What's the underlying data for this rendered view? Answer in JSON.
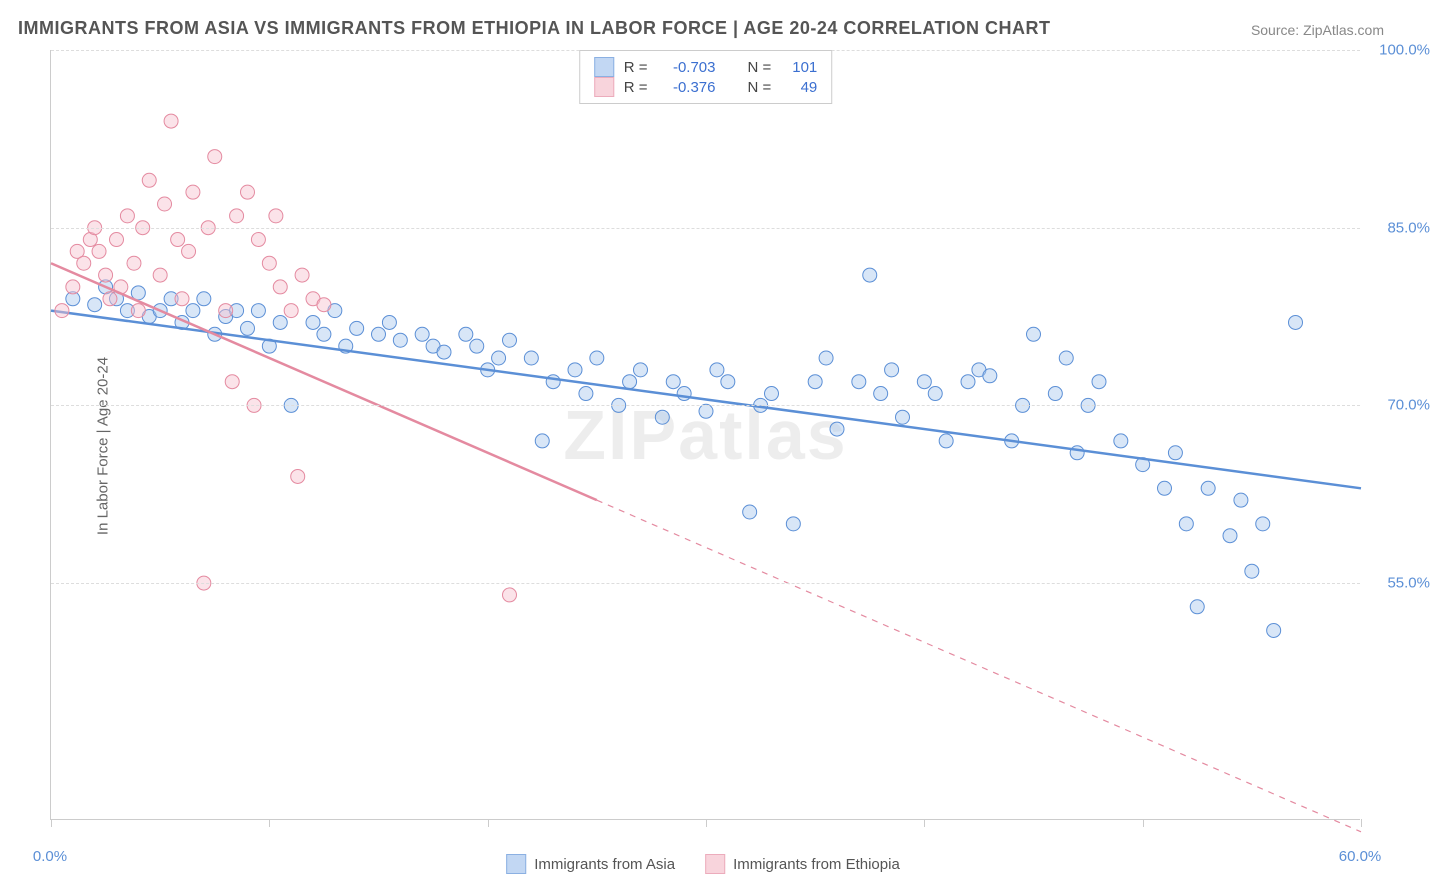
{
  "title": "IMMIGRANTS FROM ASIA VS IMMIGRANTS FROM ETHIOPIA IN LABOR FORCE | AGE 20-24 CORRELATION CHART",
  "source": "Source: ZipAtlas.com",
  "watermark": "ZIPatlas",
  "ylabel": "In Labor Force | Age 20-24",
  "chart": {
    "type": "scatter-correlation",
    "xlim": [
      0,
      60
    ],
    "ylim": [
      35,
      100
    ],
    "x_ticks": [
      0,
      10,
      20,
      30,
      40,
      50,
      60
    ],
    "x_tick_labels": [
      "0.0%",
      "",
      "",
      "",
      "",
      "",
      "60.0%"
    ],
    "y_ticks": [
      55,
      70,
      85,
      100
    ],
    "y_tick_labels": [
      "55.0%",
      "70.0%",
      "85.0%",
      "100.0%"
    ],
    "background_color": "#ffffff",
    "grid_color": "#dddddd",
    "axis_color": "#cccccc",
    "tick_label_color": "#5b8fd6",
    "marker_radius": 7,
    "marker_opacity": 0.45,
    "line_width": 2.5
  },
  "stats_legend": {
    "rows": [
      {
        "swatch_fill": "#a9c7ee",
        "swatch_border": "#5b8fd6",
        "R": "-0.703",
        "N": "101"
      },
      {
        "swatch_fill": "#f6c2ce",
        "swatch_border": "#e48aa0",
        "R": "-0.376",
        "N": "49"
      }
    ],
    "labels": {
      "R": "R =",
      "N": "N ="
    }
  },
  "bottom_legend": {
    "items": [
      {
        "label": "Immigrants from Asia",
        "fill": "#a9c7ee",
        "border": "#5b8fd6"
      },
      {
        "label": "Immigrants from Ethiopia",
        "fill": "#f6c2ce",
        "border": "#e48aa0"
      }
    ]
  },
  "series": [
    {
      "name": "Immigrants from Asia",
      "color_fill": "#a9c7ee",
      "color_stroke": "#5b8fd6",
      "trend": {
        "x1": 0,
        "y1": 78,
        "x2": 60,
        "y2": 63,
        "dash_after_x": null
      },
      "points": [
        [
          1,
          79
        ],
        [
          2,
          78.5
        ],
        [
          2.5,
          80
        ],
        [
          3,
          79
        ],
        [
          3.5,
          78
        ],
        [
          4,
          79.5
        ],
        [
          4.5,
          77.5
        ],
        [
          5,
          78
        ],
        [
          5.5,
          79
        ],
        [
          6,
          77
        ],
        [
          6.5,
          78
        ],
        [
          7,
          79
        ],
        [
          7.5,
          76
        ],
        [
          8,
          77.5
        ],
        [
          8.5,
          78
        ],
        [
          9,
          76.5
        ],
        [
          9.5,
          78
        ],
        [
          10,
          75
        ],
        [
          10.5,
          77
        ],
        [
          11,
          70
        ],
        [
          12,
          77
        ],
        [
          12.5,
          76
        ],
        [
          13,
          78
        ],
        [
          13.5,
          75
        ],
        [
          14,
          76.5
        ],
        [
          15,
          76
        ],
        [
          15.5,
          77
        ],
        [
          16,
          75.5
        ],
        [
          17,
          76
        ],
        [
          17.5,
          75
        ],
        [
          18,
          74.5
        ],
        [
          19,
          76
        ],
        [
          19.5,
          75
        ],
        [
          20,
          73
        ],
        [
          20.5,
          74
        ],
        [
          21,
          75.5
        ],
        [
          22,
          74
        ],
        [
          22.5,
          67
        ],
        [
          23,
          72
        ],
        [
          24,
          73
        ],
        [
          24.5,
          71
        ],
        [
          25,
          74
        ],
        [
          26,
          70
        ],
        [
          26.5,
          72
        ],
        [
          27,
          73
        ],
        [
          28,
          69
        ],
        [
          28.5,
          72
        ],
        [
          29,
          71
        ],
        [
          30,
          69.5
        ],
        [
          30.5,
          73
        ],
        [
          31,
          72
        ],
        [
          32,
          61
        ],
        [
          32.5,
          70
        ],
        [
          33,
          71
        ],
        [
          34,
          60
        ],
        [
          35,
          72
        ],
        [
          35.5,
          74
        ],
        [
          36,
          68
        ],
        [
          37,
          72
        ],
        [
          37.5,
          81
        ],
        [
          38,
          71
        ],
        [
          38.5,
          73
        ],
        [
          39,
          69
        ],
        [
          40,
          72
        ],
        [
          40.5,
          71
        ],
        [
          41,
          67
        ],
        [
          42,
          72
        ],
        [
          42.5,
          73
        ],
        [
          43,
          72.5
        ],
        [
          44,
          67
        ],
        [
          44.5,
          70
        ],
        [
          45,
          76
        ],
        [
          46,
          71
        ],
        [
          46.5,
          74
        ],
        [
          47,
          66
        ],
        [
          47.5,
          70
        ],
        [
          48,
          72
        ],
        [
          49,
          67
        ],
        [
          50,
          65
        ],
        [
          51,
          63
        ],
        [
          51.5,
          66
        ],
        [
          52,
          60
        ],
        [
          52.5,
          53
        ],
        [
          53,
          63
        ],
        [
          54,
          59
        ],
        [
          54.5,
          62
        ],
        [
          55,
          56
        ],
        [
          55.5,
          60
        ],
        [
          56,
          51
        ],
        [
          57,
          77
        ]
      ]
    },
    {
      "name": "Immigrants from Ethiopia",
      "color_fill": "#f6c2ce",
      "color_stroke": "#e48aa0",
      "trend": {
        "x1": 0,
        "y1": 82,
        "x2": 60,
        "y2": 34,
        "dash_after_x": 25
      },
      "points": [
        [
          0.5,
          78
        ],
        [
          1,
          80
        ],
        [
          1.2,
          83
        ],
        [
          1.5,
          82
        ],
        [
          1.8,
          84
        ],
        [
          2,
          85
        ],
        [
          2.2,
          83
        ],
        [
          2.5,
          81
        ],
        [
          2.7,
          79
        ],
        [
          3,
          84
        ],
        [
          3.2,
          80
        ],
        [
          3.5,
          86
        ],
        [
          3.8,
          82
        ],
        [
          4,
          78
        ],
        [
          4.2,
          85
        ],
        [
          4.5,
          89
        ],
        [
          5,
          81
        ],
        [
          5.2,
          87
        ],
        [
          5.5,
          94
        ],
        [
          5.8,
          84
        ],
        [
          6,
          79
        ],
        [
          6.3,
          83
        ],
        [
          6.5,
          88
        ],
        [
          7,
          55
        ],
        [
          7.2,
          85
        ],
        [
          7.5,
          91
        ],
        [
          8,
          78
        ],
        [
          8.3,
          72
        ],
        [
          8.5,
          86
        ],
        [
          9,
          88
        ],
        [
          9.3,
          70
        ],
        [
          9.5,
          84
        ],
        [
          10,
          82
        ],
        [
          10.3,
          86
        ],
        [
          10.5,
          80
        ],
        [
          11,
          78
        ],
        [
          11.3,
          64
        ],
        [
          11.5,
          81
        ],
        [
          12,
          79
        ],
        [
          12.5,
          78.5
        ],
        [
          21,
          54
        ]
      ]
    }
  ]
}
